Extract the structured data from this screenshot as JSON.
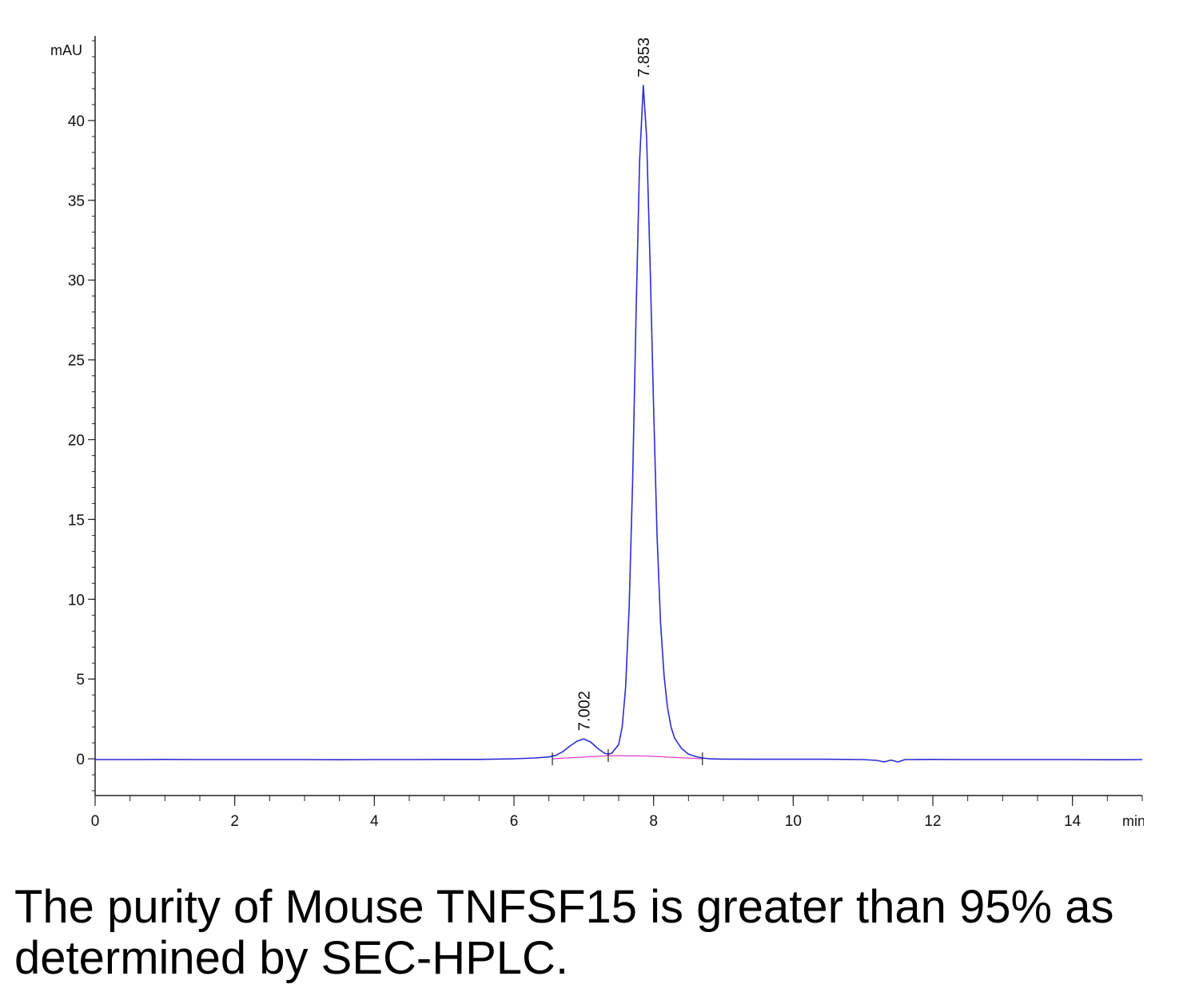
{
  "chart_data": {
    "type": "line",
    "title": "",
    "xlabel": "min",
    "ylabel": "mAU",
    "xlim": [
      0,
      15
    ],
    "ylim": [
      -2.3,
      45.3
    ],
    "xticks": [
      0,
      2,
      4,
      6,
      8,
      10,
      12,
      14
    ],
    "yticks": [
      0,
      5,
      10,
      15,
      20,
      25,
      30,
      35,
      40
    ],
    "grid": false,
    "series": [
      {
        "color": "#2b2bd6",
        "x": [
          0,
          0.5,
          1,
          1.5,
          2,
          2.5,
          3,
          3.5,
          4,
          4.5,
          5,
          5.5,
          6,
          6.3,
          6.5,
          6.6,
          6.7,
          6.8,
          6.9,
          7.0,
          7.1,
          7.2,
          7.3,
          7.35,
          7.4,
          7.5,
          7.55,
          7.6,
          7.65,
          7.7,
          7.75,
          7.8,
          7.853,
          7.9,
          7.95,
          8.0,
          8.05,
          8.1,
          8.15,
          8.2,
          8.25,
          8.3,
          8.4,
          8.5,
          8.6,
          8.7,
          8.8,
          9,
          9.5,
          10,
          10.5,
          11,
          11.2,
          11.3,
          11.4,
          11.5,
          11.6,
          11.7,
          12,
          12.5,
          13,
          13.5,
          14,
          14.5,
          15
        ],
        "values": [
          -0.05,
          -0.05,
          -0.04,
          -0.05,
          -0.05,
          -0.05,
          -0.05,
          -0.06,
          -0.05,
          -0.05,
          -0.04,
          -0.04,
          0.0,
          0.05,
          0.12,
          0.22,
          0.45,
          0.8,
          1.1,
          1.25,
          1.05,
          0.65,
          0.35,
          0.3,
          0.35,
          0.9,
          2.0,
          4.5,
          9.5,
          17.5,
          28.0,
          37.5,
          42.2,
          39.0,
          31.0,
          22.0,
          14.0,
          8.5,
          5.2,
          3.2,
          2.0,
          1.3,
          0.65,
          0.3,
          0.15,
          0.05,
          0.0,
          -0.02,
          -0.03,
          -0.03,
          -0.03,
          -0.05,
          -0.1,
          -0.2,
          -0.08,
          -0.2,
          -0.05,
          -0.05,
          -0.04,
          -0.05,
          -0.05,
          -0.05,
          -0.05,
          -0.06,
          -0.05
        ]
      },
      {
        "color": "#e040c8",
        "x": [
          6.55,
          7.35,
          7.9,
          8.7
        ],
        "values": [
          0.0,
          0.2,
          0.18,
          0.0
        ]
      }
    ],
    "annotations": [
      {
        "text": "7.002",
        "x": 7.002,
        "y": 1.25
      },
      {
        "text": "7.853",
        "x": 7.853,
        "y": 42.2
      }
    ],
    "integration_marks": [
      6.55,
      7.35,
      8.7
    ]
  },
  "caption": "The purity of Mouse TNFSF15 is greater than 95% as determined by SEC-HPLC."
}
